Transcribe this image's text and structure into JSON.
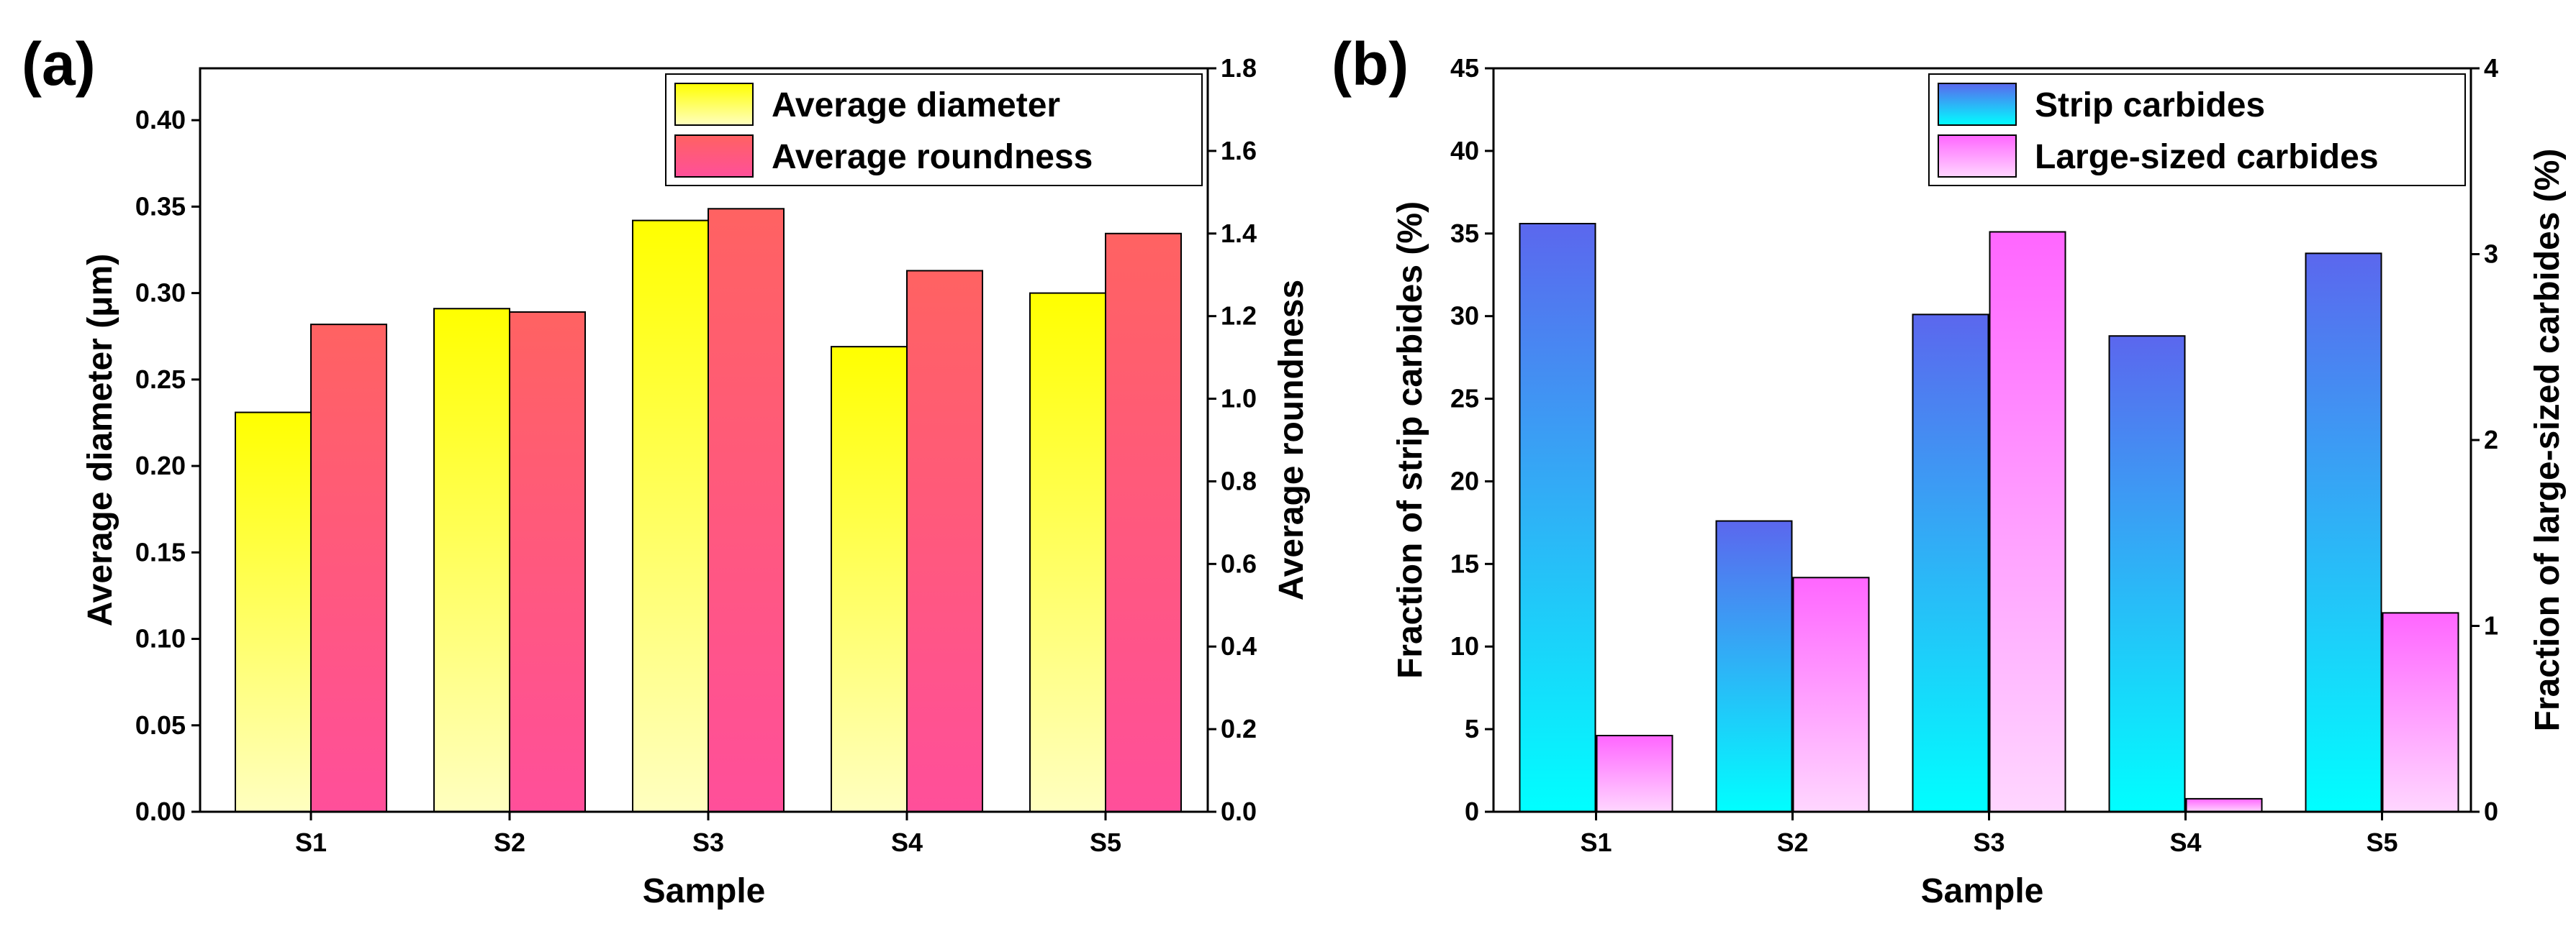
{
  "chart_data": [
    {
      "panel_label": "(a)",
      "type": "bar",
      "xlabel": "Sample",
      "ylabel_left": "Average diameter (μm)",
      "ylabel_right": "Average roundness",
      "categories": [
        "S1",
        "S2",
        "S3",
        "S4",
        "S5"
      ],
      "ylim_left": [
        0,
        0.43
      ],
      "ylim_right": [
        0,
        1.8
      ],
      "yticks_left": [
        "0.00",
        "0.05",
        "0.10",
        "0.15",
        "0.20",
        "0.25",
        "0.30",
        "0.35",
        "0.40"
      ],
      "yticks_right": [
        "0.0",
        "0.2",
        "0.4",
        "0.6",
        "0.8",
        "1.0",
        "1.2",
        "1.4",
        "1.6",
        "1.8"
      ],
      "legend_position": "top-right",
      "series": [
        {
          "name": "Average diameter",
          "axis": "left",
          "values": [
            0.231,
            0.291,
            0.342,
            0.269,
            0.3
          ],
          "color_top": "#ffff00",
          "color_bottom": "#ffffc0"
        },
        {
          "name": "Average roundness",
          "axis": "right",
          "values": [
            1.18,
            1.21,
            1.46,
            1.31,
            1.4
          ],
          "color_top": "#ff6262",
          "color_bottom": "#ff4f9a"
        }
      ]
    },
    {
      "panel_label": "(b)",
      "type": "bar",
      "xlabel": "Sample",
      "ylabel_left": "Fraction of strip carbides (%)",
      "ylabel_right": "Fraction of large-sized carbides (%)",
      "categories": [
        "S1",
        "S2",
        "S3",
        "S4",
        "S5"
      ],
      "ylim_left": [
        0,
        45
      ],
      "ylim_right": [
        0,
        4
      ],
      "yticks_left": [
        "0",
        "5",
        "10",
        "15",
        "20",
        "25",
        "30",
        "35",
        "40",
        "45"
      ],
      "yticks_right": [
        "0",
        "1",
        "2",
        "3",
        "4"
      ],
      "legend_position": "top-right",
      "series": [
        {
          "name": "Strip carbides",
          "axis": "left",
          "values": [
            35.6,
            17.6,
            30.1,
            28.8,
            33.8
          ],
          "color_top": "#5b67ee",
          "color_bottom": "#00ffff"
        },
        {
          "name": "Large-sized carbides",
          "axis": "right",
          "values": [
            0.41,
            1.26,
            3.12,
            0.07,
            1.07
          ],
          "color_top": "#ff66ff",
          "color_bottom": "#ffd6ff"
        }
      ]
    }
  ]
}
